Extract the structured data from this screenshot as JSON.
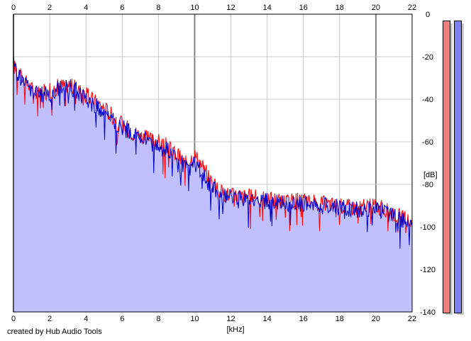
{
  "chart_data": {
    "type": "area",
    "title": "",
    "xlabel": "[kHz]",
    "ylabel": "[dB]",
    "xlim": [
      0,
      22
    ],
    "ylim": [
      -140,
      0
    ],
    "x_ticks": [
      0,
      2,
      4,
      6,
      8,
      10,
      12,
      14,
      16,
      18,
      20,
      22
    ],
    "y_ticks": [
      0,
      -20,
      -40,
      -60,
      -80,
      -100,
      -120,
      -140
    ],
    "grid": true,
    "fill_color": "#c0c0ff",
    "series": [
      {
        "color": "#ff0000",
        "x": [
          0,
          0.2,
          0.5,
          0.8,
          1,
          1.5,
          2,
          2.5,
          3,
          3.5,
          4,
          4.5,
          5,
          5.5,
          6,
          6.5,
          7,
          7.5,
          8,
          8.5,
          9,
          9.5,
          10,
          10.5,
          11,
          11.5,
          12,
          13,
          14,
          15,
          16,
          17,
          18,
          19,
          20,
          21,
          22
        ],
        "y": [
          -24,
          -27,
          -30,
          -33,
          -35,
          -37,
          -36,
          -34,
          -33,
          -35,
          -38,
          -41,
          -44,
          -48,
          -52,
          -55,
          -57,
          -59,
          -60,
          -62,
          -66,
          -70,
          -66,
          -72,
          -80,
          -84,
          -85,
          -86,
          -87,
          -88,
          -88,
          -89,
          -90,
          -91,
          -90,
          -94,
          -98
        ]
      },
      {
        "color": "#0000c8",
        "x": [
          0,
          0.2,
          0.5,
          0.8,
          1,
          1.5,
          2,
          2.5,
          3,
          3.5,
          4,
          4.5,
          5,
          5.5,
          6,
          6.5,
          7,
          7.5,
          8,
          8.5,
          9,
          9.5,
          10,
          10.5,
          11,
          11.5,
          12,
          13,
          14,
          15,
          16,
          17,
          18,
          19,
          20,
          21,
          22
        ],
        "y": [
          -22,
          -28,
          -31,
          -34,
          -36,
          -38,
          -37,
          -35,
          -34,
          -36,
          -40,
          -43,
          -46,
          -50,
          -53,
          -56,
          -58,
          -60,
          -62,
          -64,
          -68,
          -72,
          -70,
          -76,
          -82,
          -85,
          -86,
          -87,
          -88,
          -89,
          -89,
          -90,
          -91,
          -92,
          -91,
          -95,
          -99
        ]
      }
    ]
  },
  "footer": {
    "credit": "created by Hub Audio Tools"
  },
  "meters": [
    {
      "color": "#f08080",
      "level_db": 0
    },
    {
      "color": "#8080f0",
      "level_db": 0
    }
  ]
}
